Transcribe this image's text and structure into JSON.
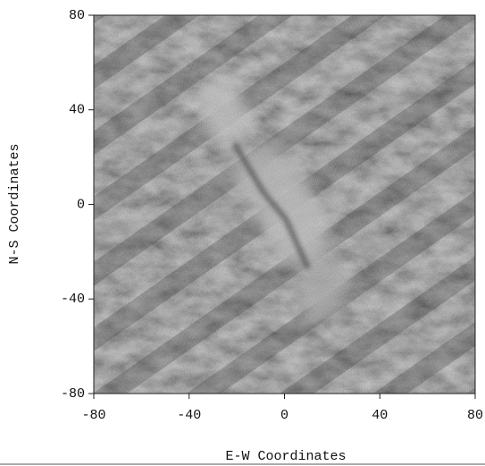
{
  "chart_data": {
    "type": "image",
    "xlabel": "E-W Coordinates",
    "ylabel": "N-S Coordinates",
    "xlim": [
      -80,
      80
    ],
    "ylim": [
      -80,
      80
    ],
    "xticks": [
      -80,
      -40,
      0,
      40,
      80
    ],
    "yticks": [
      -80,
      -40,
      0,
      40,
      80
    ]
  }
}
